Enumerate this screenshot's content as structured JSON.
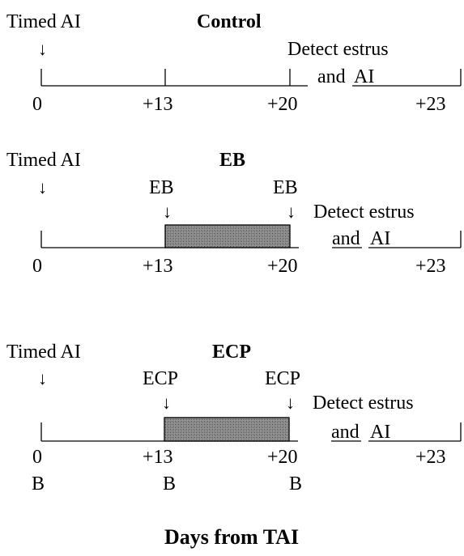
{
  "panels": [
    {
      "title": "Control",
      "timed_label": "Timed AI",
      "arrow_glyph": "↓",
      "detect_label": "Detect estrus",
      "and_label": "and",
      "ai_label": "AI",
      "ticks": [
        "0",
        "+13",
        "+20",
        "+23"
      ],
      "treatment_label": "",
      "has_treatment_bar": false,
      "bleeds": []
    },
    {
      "title": "EB",
      "timed_label": "Timed AI",
      "arrow_glyph": "↓",
      "detect_label": "Detect estrus",
      "and_label": "and",
      "ai_label": "AI",
      "ticks": [
        "0",
        "+13",
        "+20",
        "+23"
      ],
      "treatment_label": "EB",
      "has_treatment_bar": true,
      "bleeds": []
    },
    {
      "title": "ECP",
      "timed_label": "Timed AI",
      "arrow_glyph": "↓",
      "detect_label": "Detect estrus",
      "and_label": "and",
      "ai_label": "AI",
      "ticks": [
        "0",
        "+13",
        "+20",
        "+23"
      ],
      "treatment_label": "ECP",
      "has_treatment_bar": true,
      "bleeds": [
        "B",
        "B",
        "B"
      ]
    }
  ],
  "axis_title": "Days from TAI",
  "colors": {
    "ink": "#000000",
    "bar_fill": "#8a8a8a",
    "background": "#ffffff"
  }
}
